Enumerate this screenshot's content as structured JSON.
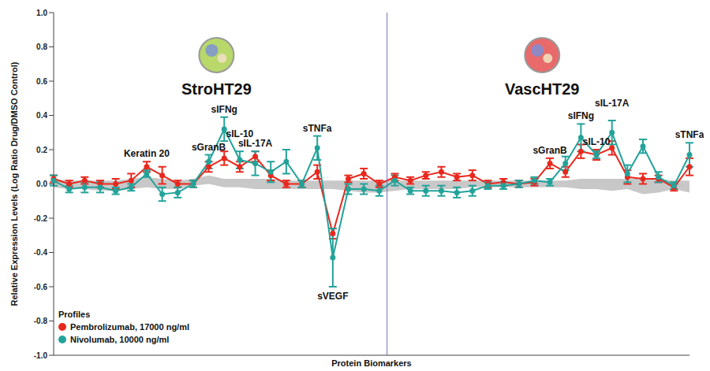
{
  "chart_data": {
    "type": "line",
    "y_label": "Relative Expression Levels (Log Ratio Drug/DMSO Control)",
    "x_label": "Protein Biomarkers",
    "categories": [
      null,
      null,
      null,
      null,
      null,
      null,
      "Keratin 20",
      null,
      null,
      null,
      "sGranB",
      "sIFNg",
      "sIL-10",
      "sIL-17A",
      null,
      null,
      null,
      "sTNFa",
      "sVEGF",
      null,
      null,
      null,
      null,
      null,
      null,
      null,
      null,
      null,
      null,
      null,
      null,
      null,
      "sGranB",
      null,
      "sIFNg",
      "sIL-10",
      "sIL-17A",
      null,
      null,
      null,
      null,
      "sTNFa"
    ],
    "groups": [
      {
        "title": "StroHT29",
        "size": 22
      },
      {
        "title": "VascHT29",
        "size": 20
      }
    ],
    "series": [
      {
        "name": "Pembrolizumab, 17000 ng/ml",
        "color": "#e8281e",
        "marker": "circle",
        "values": [
          0.03,
          0.0,
          0.02,
          0.0,
          0.0,
          0.02,
          0.1,
          0.05,
          0.0,
          0.0,
          0.1,
          0.15,
          0.1,
          0.16,
          0.05,
          0.0,
          0.0,
          0.07,
          -0.29,
          0.03,
          0.06,
          0.0,
          0.04,
          0.02,
          0.05,
          0.07,
          0.04,
          0.05,
          0.0,
          0.01,
          0.0,
          0.01,
          0.12,
          0.07,
          0.19,
          0.17,
          0.21,
          0.04,
          0.03,
          0.03,
          -0.02,
          0.1
        ],
        "errors": [
          0.02,
          0.02,
          0.02,
          0.02,
          0.03,
          0.04,
          0.03,
          0.05,
          0.02,
          0.02,
          0.03,
          0.04,
          0.03,
          0.03,
          0.03,
          0.02,
          0.02,
          0.04,
          0.03,
          0.02,
          0.03,
          0.02,
          0.02,
          0.02,
          0.02,
          0.03,
          0.02,
          0.03,
          0.02,
          0.02,
          0.02,
          0.02,
          0.03,
          0.03,
          0.04,
          0.03,
          0.04,
          0.04,
          0.03,
          0.02,
          0.02,
          0.05
        ]
      },
      {
        "name": "Nivolumab, 10000 ng/ml",
        "color": "#22a39a",
        "marker": "circle",
        "values": [
          0.02,
          -0.03,
          -0.02,
          -0.02,
          -0.04,
          -0.02,
          0.06,
          -0.06,
          -0.05,
          0.0,
          0.13,
          0.32,
          0.14,
          0.12,
          0.07,
          0.13,
          0.0,
          0.21,
          -0.43,
          -0.03,
          -0.03,
          -0.04,
          0.02,
          -0.04,
          -0.04,
          -0.04,
          -0.05,
          -0.04,
          -0.01,
          -0.01,
          0.0,
          0.02,
          0.01,
          0.12,
          0.27,
          0.17,
          0.3,
          0.06,
          0.22,
          0.04,
          -0.01,
          0.17
        ],
        "errors": [
          0.03,
          0.02,
          0.03,
          0.03,
          0.02,
          0.02,
          0.02,
          0.04,
          0.03,
          0.02,
          0.04,
          0.07,
          0.05,
          0.07,
          0.06,
          0.07,
          0.02,
          0.07,
          0.17,
          0.03,
          0.03,
          0.03,
          0.03,
          0.02,
          0.03,
          0.03,
          0.03,
          0.03,
          0.02,
          0.02,
          0.02,
          0.02,
          0.02,
          0.04,
          0.08,
          0.02,
          0.07,
          0.05,
          0.04,
          0.03,
          0.02,
          0.07
        ]
      }
    ],
    "control_band": {
      "color": "#c8c8c8",
      "lower": [
        -0.02,
        -0.03,
        -0.03,
        -0.04,
        -0.04,
        -0.03,
        -0.02,
        -0.03,
        -0.03,
        -0.01,
        0.0,
        -0.02,
        -0.02,
        -0.03,
        -0.03,
        -0.03,
        -0.03,
        -0.03,
        -0.03,
        -0.04,
        -0.05,
        -0.05,
        -0.04,
        -0.03,
        -0.03,
        -0.03,
        -0.03,
        -0.02,
        -0.02,
        -0.02,
        -0.02,
        -0.02,
        -0.02,
        -0.02,
        -0.03,
        -0.03,
        -0.04,
        -0.03,
        -0.06,
        -0.05,
        -0.03,
        -0.05
      ],
      "upper": [
        0.03,
        0.02,
        0.02,
        0.02,
        0.02,
        0.03,
        0.04,
        0.03,
        0.02,
        0.03,
        0.05,
        0.03,
        0.03,
        0.03,
        0.03,
        0.02,
        0.02,
        0.02,
        0.02,
        0.02,
        0.02,
        0.02,
        0.02,
        0.02,
        0.02,
        0.02,
        0.02,
        0.02,
        0.02,
        0.02,
        0.02,
        0.02,
        0.02,
        0.02,
        0.03,
        0.03,
        0.03,
        0.03,
        0.03,
        0.03,
        0.02,
        0.02
      ]
    },
    "ylim": [
      -1,
      1
    ],
    "yticks": [
      {
        "value": -1,
        "label": "-1.0"
      },
      {
        "value": -0.8,
        "label": "-0.8"
      },
      {
        "value": -0.6,
        "label": "-0.6"
      },
      {
        "value": -0.4,
        "label": "-0.4"
      },
      {
        "value": -0.2,
        "label": "-0.2"
      },
      {
        "value": 0,
        "label": "0.0"
      },
      {
        "value": 0.2,
        "label": "0.2"
      },
      {
        "value": 0.4,
        "label": "0.4"
      },
      {
        "value": 0.6,
        "label": "0.6"
      },
      {
        "value": 0.8,
        "label": "0.8"
      },
      {
        "value": 1,
        "label": "1.0"
      }
    ],
    "tick_labels": "y",
    "grid": false,
    "legend": "lower left",
    "legend_title": "Profiles"
  }
}
